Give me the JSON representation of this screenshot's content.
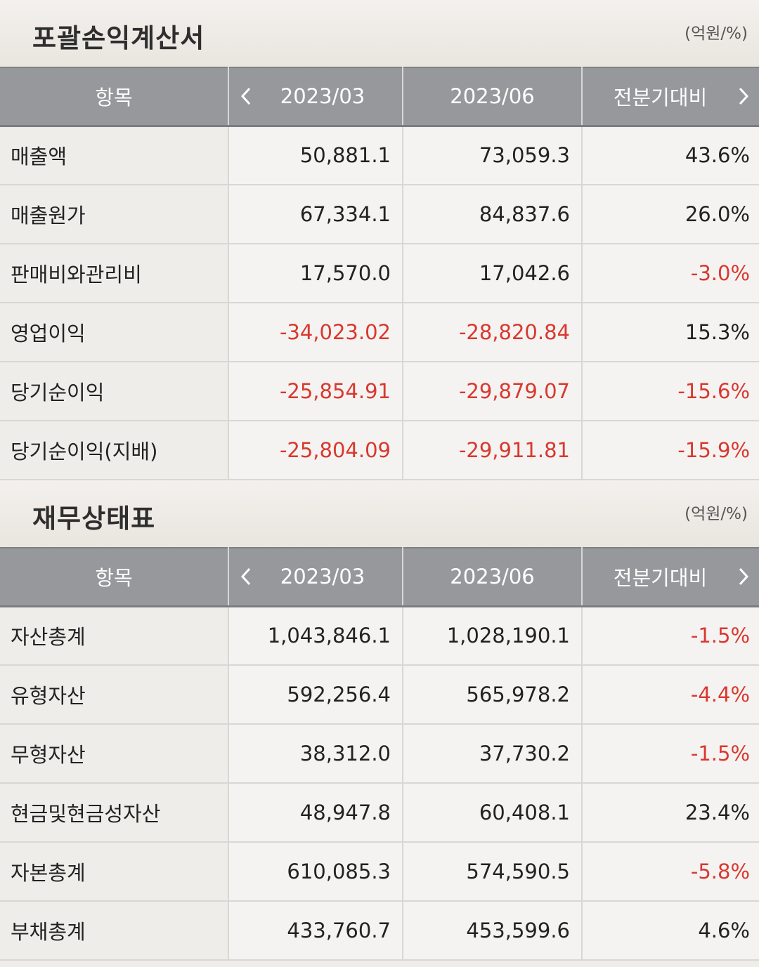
{
  "income_statement": {
    "title": "포괄손익계산서",
    "unit": "(억원/%)",
    "headers": {
      "item": "항목",
      "period1": "2023/03",
      "period2": "2023/06",
      "compare": "전분기대비"
    },
    "rows": [
      {
        "label": "매출액",
        "v1": "50,881.1",
        "v2": "73,059.3",
        "pct": "43.6%",
        "neg1": false,
        "neg2": false,
        "negp": false
      },
      {
        "label": "매출원가",
        "v1": "67,334.1",
        "v2": "84,837.6",
        "pct": "26.0%",
        "neg1": false,
        "neg2": false,
        "negp": false
      },
      {
        "label": "판매비와관리비",
        "v1": "17,570.0",
        "v2": "17,042.6",
        "pct": "-3.0%",
        "neg1": false,
        "neg2": false,
        "negp": true
      },
      {
        "label": "영업이익",
        "v1": "-34,023.02",
        "v2": "-28,820.84",
        "pct": "15.3%",
        "neg1": true,
        "neg2": true,
        "negp": false
      },
      {
        "label": "당기순이익",
        "v1": "-25,854.91",
        "v2": "-29,879.07",
        "pct": "-15.6%",
        "neg1": true,
        "neg2": true,
        "negp": true
      },
      {
        "label": "당기순이익(지배)",
        "v1": "-25,804.09",
        "v2": "-29,911.81",
        "pct": "-15.9%",
        "neg1": true,
        "neg2": true,
        "negp": true
      }
    ]
  },
  "balance_sheet": {
    "title": "재무상태표",
    "unit": "(억원/%)",
    "headers": {
      "item": "항목",
      "period1": "2023/03",
      "period2": "2023/06",
      "compare": "전분기대비"
    },
    "rows": [
      {
        "label": "자산총계",
        "v1": "1,043,846.1",
        "v2": "1,028,190.1",
        "pct": "-1.5%",
        "neg1": false,
        "neg2": false,
        "negp": true
      },
      {
        "label": "유형자산",
        "v1": "592,256.4",
        "v2": "565,978.2",
        "pct": "-4.4%",
        "neg1": false,
        "neg2": false,
        "negp": true
      },
      {
        "label": "무형자산",
        "v1": "38,312.0",
        "v2": "37,730.2",
        "pct": "-1.5%",
        "neg1": false,
        "neg2": false,
        "negp": true
      },
      {
        "label": "현금및현금성자산",
        "v1": "48,947.8",
        "v2": "60,408.1",
        "pct": "23.4%",
        "neg1": false,
        "neg2": false,
        "negp": false
      },
      {
        "label": "자본총계",
        "v1": "610,085.3",
        "v2": "574,590.5",
        "pct": "-5.8%",
        "neg1": false,
        "neg2": false,
        "negp": true
      },
      {
        "label": "부채총계",
        "v1": "433,760.7",
        "v2": "453,599.6",
        "pct": "4.6%",
        "neg1": false,
        "neg2": false,
        "negp": false
      }
    ]
  },
  "icons": {
    "prev": "chevron-left-icon",
    "next": "chevron-right-icon"
  },
  "colors": {
    "negative": "#d9382f",
    "header_bg": "#96989b",
    "text": "#222222"
  }
}
